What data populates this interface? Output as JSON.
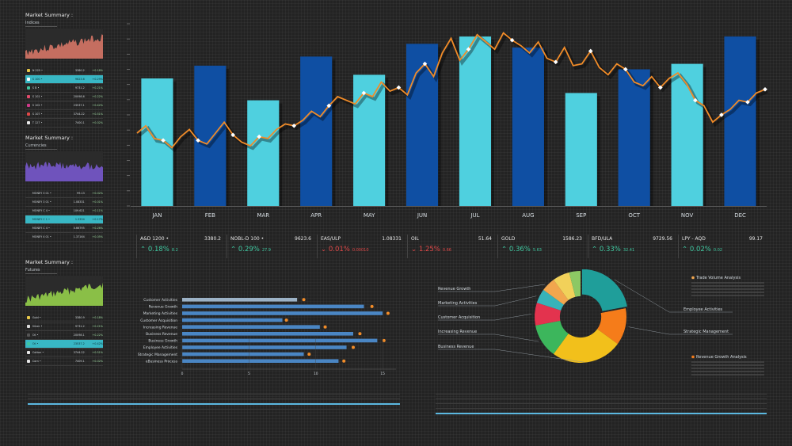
{
  "colors": {
    "bar_light": "#4fd0df",
    "bar_dark": "#0f4fa3",
    "line": "#f28c28",
    "accent": "#38b7c4"
  },
  "panels": [
    {
      "title": "Market Summary :",
      "subtitle": "Indices",
      "chart_color": "#e07a6a",
      "rows": [
        {
          "name": "N 225 •",
          "value": "3380.2",
          "change": "+0.18%",
          "color": "#e8c84a"
        },
        {
          "name": "S 100 •",
          "value": "9623.6",
          "change": "+0.29%",
          "color": "#ffffff",
          "hl": true
        },
        {
          "name": "S B •",
          "value": "9731.2",
          "change": "+0.21%",
          "color": "#3fc7a0"
        },
        {
          "name": "S 101 •",
          "value": "20098.6",
          "change": "+0.22%",
          "color": "#e24a6a"
        },
        {
          "name": "S 102 •",
          "value": "23537.1",
          "change": "+0.42%",
          "color": "#cf3a8a"
        },
        {
          "name": "S 107 •",
          "value": "3744.22",
          "change": "+0.51%",
          "color": "#e04848"
        },
        {
          "name": "T 127 •",
          "value": "7400.1",
          "change": "+0.02%",
          "color": "#e8e8e8"
        }
      ]
    },
    {
      "title": "Market Summary :",
      "subtitle": "Currencies",
      "chart_color": "#7b5bd6",
      "rows": [
        {
          "name": "MONEY 3 01 •",
          "value": "99.13",
          "change": "+0.02%",
          "color": ""
        },
        {
          "name": "MONEY 3 01 •",
          "value": "1.08331",
          "change": "+0.01%",
          "color": ""
        },
        {
          "name": "MONEY C 4 •",
          "value": "109.621",
          "change": "+0.11%",
          "color": ""
        },
        {
          "name": "MONEY C 1 •",
          "value": "1.3334",
          "change": "+0.17%",
          "color": "",
          "hl": true
        },
        {
          "name": "MONEY C 4 •",
          "value": "0.66795",
          "change": "+0.26%",
          "color": ""
        },
        {
          "name": "MONEY 4 01 •",
          "value": "1.37164",
          "change": "+0.05%",
          "color": ""
        }
      ]
    },
    {
      "title": "Market Summary :",
      "subtitle": "Futures",
      "chart_color": "#9bd94c",
      "rows": [
        {
          "name": "Gold •",
          "value": "3380.9",
          "change": "+0.18%",
          "color": "#e8c84a"
        },
        {
          "name": "Silver •",
          "value": "9731.2",
          "change": "+0.21%",
          "color": "#dcdcdc"
        },
        {
          "name": "Oil •",
          "value": "20098.1",
          "change": "+0.22%",
          "color": "#555555"
        },
        {
          "name": "Oil •",
          "value": "23537.2",
          "change": "+0.42%",
          "color": "#3fc7a0",
          "hl": true
        },
        {
          "name": "Cotton •",
          "value": "3744.22",
          "change": "+0.51%",
          "color": "#e8e8e8"
        },
        {
          "name": "Corn •",
          "value": "7409.1",
          "change": "+0.02%",
          "color": "#e8e8e8"
        }
      ]
    }
  ],
  "tickers": [
    {
      "name": "A&D 1200 •",
      "price": "3380.2",
      "change": "0.18%",
      "sub": "8.2",
      "dir": "up"
    },
    {
      "name": "NOBL-D 100 •",
      "price": "9623.6",
      "change": "0.29%",
      "sub": "27.9",
      "dir": "up"
    },
    {
      "name": "EAS/ULP",
      "price": "1.08331",
      "change": "0.01%",
      "sub": "0.00010",
      "dir": "dn"
    },
    {
      "name": "OIL",
      "price": "51.64",
      "change": "1.25%",
      "sub": "0.66",
      "dir": "dn"
    },
    {
      "name": "GOLD",
      "price": "1586.23",
      "change": "0.36%",
      "sub": "5.63",
      "dir": "up"
    },
    {
      "name": "BFD/ULA",
      "price": "9729.56",
      "change": "0.33%",
      "sub": "32.41",
      "dir": "up"
    },
    {
      "name": "LPY - AQD",
      "price": "99.17",
      "change": "0.02%",
      "sub": "0.02",
      "dir": "up"
    }
  ],
  "chart_data": [
    {
      "type": "bar",
      "title": "",
      "categories": [
        "JAN",
        "FEB",
        "MAR",
        "APR",
        "MAY",
        "JUN",
        "JUL",
        "AUG",
        "SEP",
        "OCT",
        "NOV",
        "DEC"
      ],
      "values": [
        70,
        77,
        58,
        82,
        72,
        89,
        93,
        87,
        62,
        75,
        78,
        93
      ],
      "ylim": [
        0,
        100
      ],
      "line": {
        "type": "line",
        "values": [
          40,
          44,
          37,
          36,
          32,
          38,
          42,
          36,
          34,
          40,
          46,
          39,
          35,
          33,
          38,
          37,
          42,
          45,
          44,
          47,
          52,
          49,
          55,
          60,
          58,
          56,
          62,
          60,
          68,
          63,
          65,
          61,
          73,
          78,
          71,
          84,
          92,
          80,
          86,
          94,
          90,
          86,
          95,
          91,
          88,
          84,
          90,
          81,
          79,
          87,
          77,
          78,
          85,
          76,
          72,
          78,
          75,
          68,
          66,
          71,
          65,
          70,
          73,
          67,
          58,
          55,
          46,
          50,
          53,
          58,
          57,
          62,
          64
        ]
      }
    },
    {
      "type": "bar",
      "orientation": "horizontal",
      "categories": [
        "Customer Activities",
        "Revenue Growth",
        "Marketing Activities",
        "Customer Acquisition",
        "Increasing Revenue",
        "Business Revenue",
        "Business Growth",
        "Employee Activities",
        "Strategic Management",
        "eBusiness Process"
      ],
      "values": [
        8.6,
        13.6,
        15.0,
        7.5,
        10.3,
        12.8,
        14.6,
        12.3,
        9.1,
        11.7
      ],
      "markers": [
        9.1,
        14.2,
        15.4,
        7.8,
        10.7,
        13.3,
        15.1,
        12.8,
        9.5,
        12.1
      ],
      "xticks": [
        "0",
        "5",
        "10",
        "15"
      ],
      "xlim": [
        0,
        16
      ]
    },
    {
      "type": "pie",
      "hole": 0.45,
      "slices": [
        {
          "label": "Employee Activities",
          "value": 22,
          "color": "#1f9e9a"
        },
        {
          "label": "Strategic Management",
          "value": 13,
          "color": "#f57c1a"
        },
        {
          "label": "Business Revenue",
          "value": 25,
          "color": "#f2c01b"
        },
        {
          "label": "Increasing Revenue",
          "value": 12,
          "color": "#3cb65c"
        },
        {
          "label": "Customer Acquisition",
          "value": 8,
          "color": "#e3334e"
        },
        {
          "label": "Marketing Activities",
          "value": 5,
          "color": "#37b3b9"
        },
        {
          "label": "Revenue Growth",
          "value": 5,
          "color": "#f2a64e"
        },
        {
          "label": "",
          "value": 6,
          "color": "#f1d15a"
        },
        {
          "label": "",
          "value": 4,
          "color": "#8cc864"
        }
      ],
      "legend": [
        {
          "title": "Trade Volume Analysis",
          "color": "#f2a64e"
        },
        {
          "title": "Revenue Growth Analysis",
          "color": "#f57c1a"
        }
      ]
    }
  ]
}
